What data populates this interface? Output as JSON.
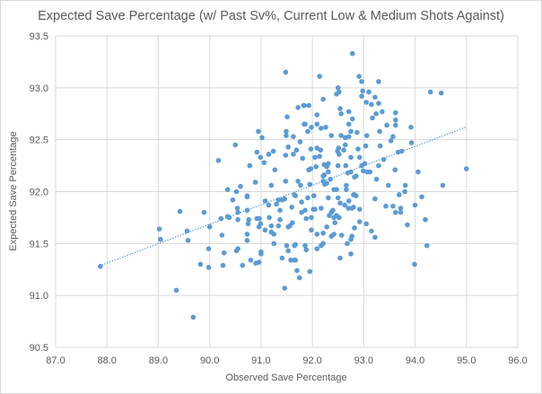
{
  "chart_data": {
    "type": "scatter",
    "title": "Expected Save Percentage (w/ Past Sv%, Current Low & Medium Shots Against)",
    "xlabel": "Observed Save Percentage",
    "ylabel": "Expected Save Percentage",
    "xlim": [
      87.0,
      96.0
    ],
    "ylim": [
      90.5,
      93.5
    ],
    "xticks": [
      "87.0",
      "88.0",
      "89.0",
      "90.0",
      "91.0",
      "92.0",
      "93.0",
      "94.0",
      "95.0",
      "96.0"
    ],
    "yticks": [
      "90.5",
      "91.0",
      "91.5",
      "92.0",
      "92.5",
      "93.0",
      "93.5"
    ],
    "grid": true,
    "legend": "none",
    "colors": {
      "points": "#5B9BD5",
      "trendline": "#5B9BD5",
      "grid": "#D9D9D9"
    },
    "trendline": {
      "type": "linear",
      "slope": 0.1874,
      "intercept": 74.82,
      "x_range": [
        87.85,
        95.0
      ]
    },
    "points": [
      [
        87.87,
        91.28
      ],
      [
        89.02,
        91.64
      ],
      [
        89.04,
        91.54
      ],
      [
        89.35,
        91.05
      ],
      [
        89.42,
        91.81
      ],
      [
        89.56,
        91.62
      ],
      [
        89.58,
        91.53
      ],
      [
        89.68,
        90.79
      ],
      [
        89.82,
        91.3
      ],
      [
        89.89,
        91.8
      ],
      [
        89.98,
        91.45
      ],
      [
        89.98,
        91.27
      ],
      [
        90.0,
        91.66
      ],
      [
        90.22,
        91.74
      ],
      [
        90.24,
        91.58
      ],
      [
        90.26,
        91.29
      ],
      [
        90.28,
        91.41
      ],
      [
        90.35,
        91.76
      ],
      [
        90.38,
        91.75
      ],
      [
        90.35,
        92.02
      ],
      [
        90.45,
        91.92
      ],
      [
        90.52,
        92.0
      ],
      [
        90.54,
        91.84
      ],
      [
        90.55,
        91.8
      ],
      [
        90.55,
        91.73
      ],
      [
        90.52,
        91.43
      ],
      [
        90.55,
        91.45
      ],
      [
        90.64,
        91.29
      ],
      [
        90.73,
        91.95
      ],
      [
        90.73,
        91.82
      ],
      [
        90.76,
        91.73
      ],
      [
        90.75,
        91.69
      ],
      [
        90.73,
        91.59
      ],
      [
        90.73,
        91.53
      ],
      [
        90.8,
        91.34
      ],
      [
        90.9,
        91.31
      ],
      [
        90.96,
        91.32
      ],
      [
        90.92,
        91.74
      ],
      [
        90.97,
        91.74
      ],
      [
        90.99,
        91.69
      ],
      [
        90.96,
        91.66
      ],
      [
        91.0,
        91.42
      ],
      [
        91.0,
        91.4
      ],
      [
        91.08,
        91.63
      ],
      [
        91.08,
        91.91
      ],
      [
        91.15,
        91.87
      ],
      [
        91.16,
        91.75
      ],
      [
        91.2,
        91.67
      ],
      [
        91.2,
        91.61
      ],
      [
        91.25,
        91.59
      ],
      [
        91.25,
        91.5
      ],
      [
        91.3,
        91.88
      ],
      [
        91.34,
        91.92
      ],
      [
        91.41,
        91.92
      ],
      [
        91.46,
        91.93
      ],
      [
        91.37,
        91.82
      ],
      [
        91.37,
        91.73
      ],
      [
        91.34,
        91.67
      ],
      [
        91.53,
        91.66
      ],
      [
        91.56,
        91.67
      ],
      [
        91.61,
        91.7
      ],
      [
        91.6,
        91.85
      ],
      [
        91.65,
        91.97
      ],
      [
        91.41,
        91.36
      ],
      [
        91.46,
        91.07
      ],
      [
        91.5,
        91.48
      ],
      [
        91.53,
        91.43
      ],
      [
        91.58,
        91.34
      ],
      [
        91.65,
        91.34
      ],
      [
        91.65,
        91.48
      ],
      [
        91.48,
        93.15
      ],
      [
        91.72,
        92.81
      ],
      [
        91.83,
        92.83
      ],
      [
        91.51,
        92.72
      ],
      [
        91.84,
        92.65
      ],
      [
        90.95,
        92.58
      ],
      [
        91.02,
        92.52
      ],
      [
        91.49,
        92.58
      ],
      [
        91.49,
        92.54
      ],
      [
        91.63,
        92.53
      ],
      [
        90.5,
        92.45
      ],
      [
        91.53,
        92.43
      ],
      [
        91.63,
        92.36
      ],
      [
        91.48,
        92.35
      ],
      [
        90.92,
        92.38
      ],
      [
        90.99,
        92.33
      ],
      [
        91.15,
        92.36
      ],
      [
        91.24,
        92.39
      ],
      [
        91.06,
        92.28
      ],
      [
        90.17,
        92.3
      ],
      [
        90.78,
        92.25
      ],
      [
        91.27,
        92.21
      ],
      [
        90.89,
        92.09
      ],
      [
        91.2,
        92.06
      ],
      [
        91.48,
        92.1
      ],
      [
        90.6,
        92.05
      ],
      [
        90.73,
        91.96
      ],
      [
        91.67,
        91.96
      ],
      [
        92.78,
        93.33
      ],
      [
        92.14,
        93.11
      ],
      [
        92.91,
        93.11
      ],
      [
        92.96,
        93.06
      ],
      [
        93.29,
        93.06
      ],
      [
        92.5,
        93.0
      ],
      [
        92.52,
        92.96
      ],
      [
        92.47,
        92.94
      ],
      [
        92.98,
        92.97
      ],
      [
        92.96,
        92.92
      ],
      [
        93.1,
        92.96
      ],
      [
        93.22,
        92.91
      ],
      [
        92.21,
        92.89
      ],
      [
        94.3,
        92.96
      ],
      [
        94.51,
        92.95
      ],
      [
        93.05,
        92.86
      ],
      [
        93.15,
        92.84
      ],
      [
        93.29,
        92.85
      ],
      [
        92.54,
        92.8
      ],
      [
        92.56,
        92.75
      ],
      [
        92.71,
        92.77
      ],
      [
        93.24,
        92.75
      ],
      [
        93.36,
        92.77
      ],
      [
        92.78,
        92.7
      ],
      [
        93.17,
        92.71
      ],
      [
        93.62,
        92.76
      ],
      [
        93.62,
        92.69
      ],
      [
        93.62,
        92.64
      ],
      [
        93.45,
        92.64
      ],
      [
        93.92,
        92.62
      ],
      [
        92.71,
        92.65
      ],
      [
        92.09,
        92.74
      ],
      [
        92.09,
        92.65
      ],
      [
        92.17,
        92.61
      ],
      [
        92.26,
        92.62
      ],
      [
        91.86,
        92.65
      ],
      [
        91.98,
        92.62
      ],
      [
        91.91,
        92.58
      ],
      [
        91.84,
        92.83
      ],
      [
        91.93,
        92.83
      ],
      [
        93.31,
        92.58
      ],
      [
        92.87,
        92.57
      ],
      [
        92.56,
        92.54
      ],
      [
        92.75,
        92.58
      ],
      [
        92.37,
        92.54
      ],
      [
        92.71,
        92.53
      ],
      [
        92.64,
        92.52
      ],
      [
        93.06,
        92.54
      ],
      [
        93.57,
        92.53
      ],
      [
        91.76,
        92.48
      ],
      [
        93.53,
        92.49
      ],
      [
        93.93,
        92.47
      ],
      [
        92.64,
        92.45
      ],
      [
        93.32,
        92.44
      ],
      [
        91.69,
        92.4
      ],
      [
        91.97,
        92.41
      ],
      [
        92.09,
        92.42
      ],
      [
        92.16,
        92.4
      ],
      [
        92.51,
        92.42
      ],
      [
        92.61,
        92.4
      ],
      [
        92.89,
        92.41
      ],
      [
        93.04,
        92.44
      ],
      [
        93.67,
        92.38
      ],
      [
        93.74,
        92.39
      ],
      [
        92.49,
        92.39
      ],
      [
        92.52,
        92.36
      ],
      [
        91.81,
        92.32
      ],
      [
        92.05,
        92.33
      ],
      [
        92.14,
        92.34
      ],
      [
        92.75,
        92.33
      ],
      [
        92.92,
        92.33
      ],
      [
        93.39,
        92.31
      ],
      [
        92.23,
        92.26
      ],
      [
        92.31,
        92.27
      ],
      [
        92.5,
        92.25
      ],
      [
        92.65,
        92.25
      ],
      [
        92.96,
        92.25
      ],
      [
        93.02,
        92.27
      ],
      [
        93.29,
        92.25
      ],
      [
        95.0,
        92.22
      ],
      [
        91.93,
        92.21
      ],
      [
        91.97,
        92.22
      ],
      [
        92.07,
        92.24
      ],
      [
        92.28,
        92.24
      ],
      [
        92.31,
        92.19
      ],
      [
        92.69,
        92.18
      ],
      [
        92.75,
        92.19
      ],
      [
        92.99,
        92.2
      ],
      [
        93.06,
        92.19
      ],
      [
        93.12,
        92.19
      ],
      [
        93.61,
        92.21
      ],
      [
        94.06,
        92.19
      ],
      [
        92.21,
        92.15
      ],
      [
        92.23,
        92.16
      ],
      [
        92.82,
        92.14
      ],
      [
        92.85,
        92.15
      ],
      [
        93.25,
        92.12
      ],
      [
        91.72,
        92.1
      ],
      [
        91.95,
        92.07
      ],
      [
        91.77,
        92.06
      ],
      [
        92.21,
        92.1
      ],
      [
        92.24,
        92.07
      ],
      [
        92.28,
        92.08
      ],
      [
        92.35,
        92.12
      ],
      [
        92.42,
        92.02
      ],
      [
        92.47,
        92.02
      ],
      [
        92.66,
        92.06
      ],
      [
        92.66,
        92.02
      ],
      [
        93.48,
        92.06
      ],
      [
        93.81,
        92.06
      ],
      [
        94.54,
        92.06
      ],
      [
        93.69,
        91.97
      ],
      [
        93.8,
        92.0
      ],
      [
        92.82,
        91.97
      ],
      [
        94.13,
        91.95
      ],
      [
        91.91,
        91.94
      ],
      [
        92.03,
        91.96
      ],
      [
        92.31,
        91.94
      ],
      [
        92.5,
        91.94
      ],
      [
        92.71,
        91.91
      ],
      [
        92.8,
        91.97
      ],
      [
        92.85,
        91.96
      ],
      [
        93.22,
        91.93
      ],
      [
        91.79,
        91.9
      ],
      [
        92.54,
        91.89
      ],
      [
        92.63,
        91.87
      ],
      [
        92.7,
        91.84
      ],
      [
        92.77,
        91.84
      ],
      [
        92.8,
        91.85
      ],
      [
        92.92,
        91.83
      ],
      [
        93.43,
        91.86
      ],
      [
        93.57,
        91.86
      ],
      [
        93.62,
        91.8
      ],
      [
        93.72,
        91.84
      ],
      [
        93.72,
        91.8
      ],
      [
        94.0,
        91.87
      ],
      [
        91.79,
        91.8
      ],
      [
        91.86,
        91.82
      ],
      [
        92.02,
        91.83
      ],
      [
        92.05,
        91.83
      ],
      [
        92.17,
        91.84
      ],
      [
        92.33,
        91.77
      ],
      [
        92.37,
        91.8
      ],
      [
        92.4,
        91.82
      ],
      [
        92.47,
        91.77
      ],
      [
        92.52,
        91.75
      ],
      [
        92.42,
        91.75
      ],
      [
        91.88,
        91.74
      ],
      [
        91.98,
        91.75
      ],
      [
        92.44,
        91.7
      ],
      [
        92.92,
        91.71
      ],
      [
        93.05,
        91.69
      ],
      [
        92.28,
        91.66
      ],
      [
        92.82,
        91.65
      ],
      [
        93.85,
        91.68
      ],
      [
        94.2,
        91.73
      ],
      [
        91.98,
        91.63
      ],
      [
        92.09,
        91.59
      ],
      [
        92.21,
        91.6
      ],
      [
        92.37,
        91.57
      ],
      [
        92.42,
        91.59
      ],
      [
        92.57,
        91.58
      ],
      [
        92.77,
        91.57
      ],
      [
        92.75,
        91.54
      ],
      [
        93.15,
        91.62
      ],
      [
        93.22,
        91.56
      ],
      [
        91.67,
        91.49
      ],
      [
        91.86,
        91.48
      ],
      [
        91.88,
        91.44
      ],
      [
        92.17,
        91.48
      ],
      [
        92.21,
        91.5
      ],
      [
        92.68,
        91.5
      ],
      [
        92.09,
        91.45
      ],
      [
        94.23,
        91.48
      ],
      [
        91.67,
        91.34
      ],
      [
        92.54,
        91.36
      ],
      [
        92.75,
        91.4
      ],
      [
        93.99,
        91.3
      ],
      [
        91.7,
        91.24
      ],
      [
        91.75,
        91.17
      ],
      [
        91.95,
        91.23
      ]
    ]
  }
}
